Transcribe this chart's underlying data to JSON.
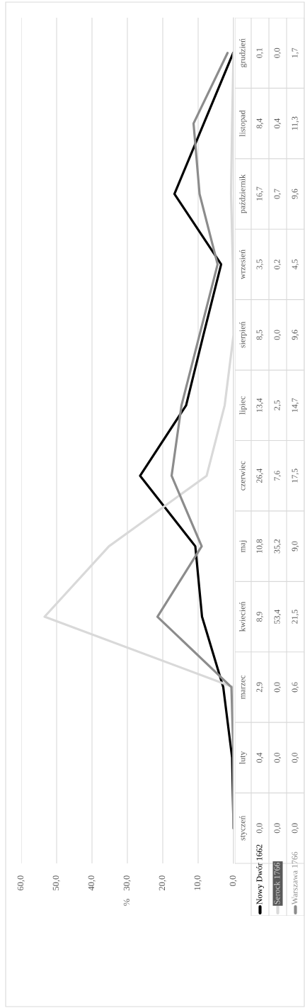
{
  "chart_data": {
    "type": "line",
    "orientation": "horizontal",
    "categories": [
      "grudzień",
      "listopad",
      "październik",
      "wrzesień",
      "sierpień",
      "lipiec",
      "czerwiec",
      "maj",
      "kwiecień",
      "marzec",
      "luty",
      "styczeń"
    ],
    "series": [
      {
        "name": "Nowy Dwór 1662",
        "color": "#000000",
        "values": [
          0.1,
          8.4,
          16.7,
          3.5,
          8.5,
          13.4,
          26.4,
          10.8,
          8.9,
          2.9,
          0.4,
          0.0
        ],
        "value_labels": [
          "0,1",
          "8,4",
          "16,7",
          "3,5",
          "8,5",
          "13,4",
          "26,4",
          "10,8",
          "8,9",
          "2,9",
          "0,4",
          "0,0"
        ]
      },
      {
        "name": "Serock 1766",
        "color": "#d9d9d9",
        "values": [
          0.0,
          0.4,
          0.7,
          0.2,
          0.0,
          2.5,
          7.6,
          35.2,
          53.4,
          0.0,
          0.0,
          0.0
        ],
        "value_labels": [
          "0,0",
          "0,4",
          "0,7",
          "0,2",
          "0,0",
          "2,5",
          "7,6",
          "35,2",
          "53,4",
          "0,0",
          "0,0",
          "0,0"
        ]
      },
      {
        "name": "Warszawa 1766",
        "color": "#8c8c8c",
        "values": [
          1.7,
          11.3,
          9.6,
          4.5,
          9.6,
          14.7,
          17.5,
          9.0,
          21.5,
          0.6,
          0.0,
          0.0
        ],
        "value_labels": [
          "1,7",
          "11,3",
          "9,6",
          "4,5",
          "9,6",
          "14,7",
          "17,5",
          "9,0",
          "21,5",
          "0,6",
          "0,0",
          "0,0"
        ]
      }
    ],
    "ylabel": "%",
    "xlim": [
      60,
      0
    ],
    "xticks": [
      {
        "value": 0,
        "label": "0,0"
      },
      {
        "value": 10,
        "label": "10,0"
      },
      {
        "value": 20,
        "label": "20,0"
      },
      {
        "value": 30,
        "label": "30,0"
      },
      {
        "value": 40,
        "label": "40,0"
      },
      {
        "value": 50,
        "label": "50,0"
      },
      {
        "value": 60,
        "label": "60,0"
      }
    ],
    "grid": "x",
    "legend": "bottom"
  }
}
